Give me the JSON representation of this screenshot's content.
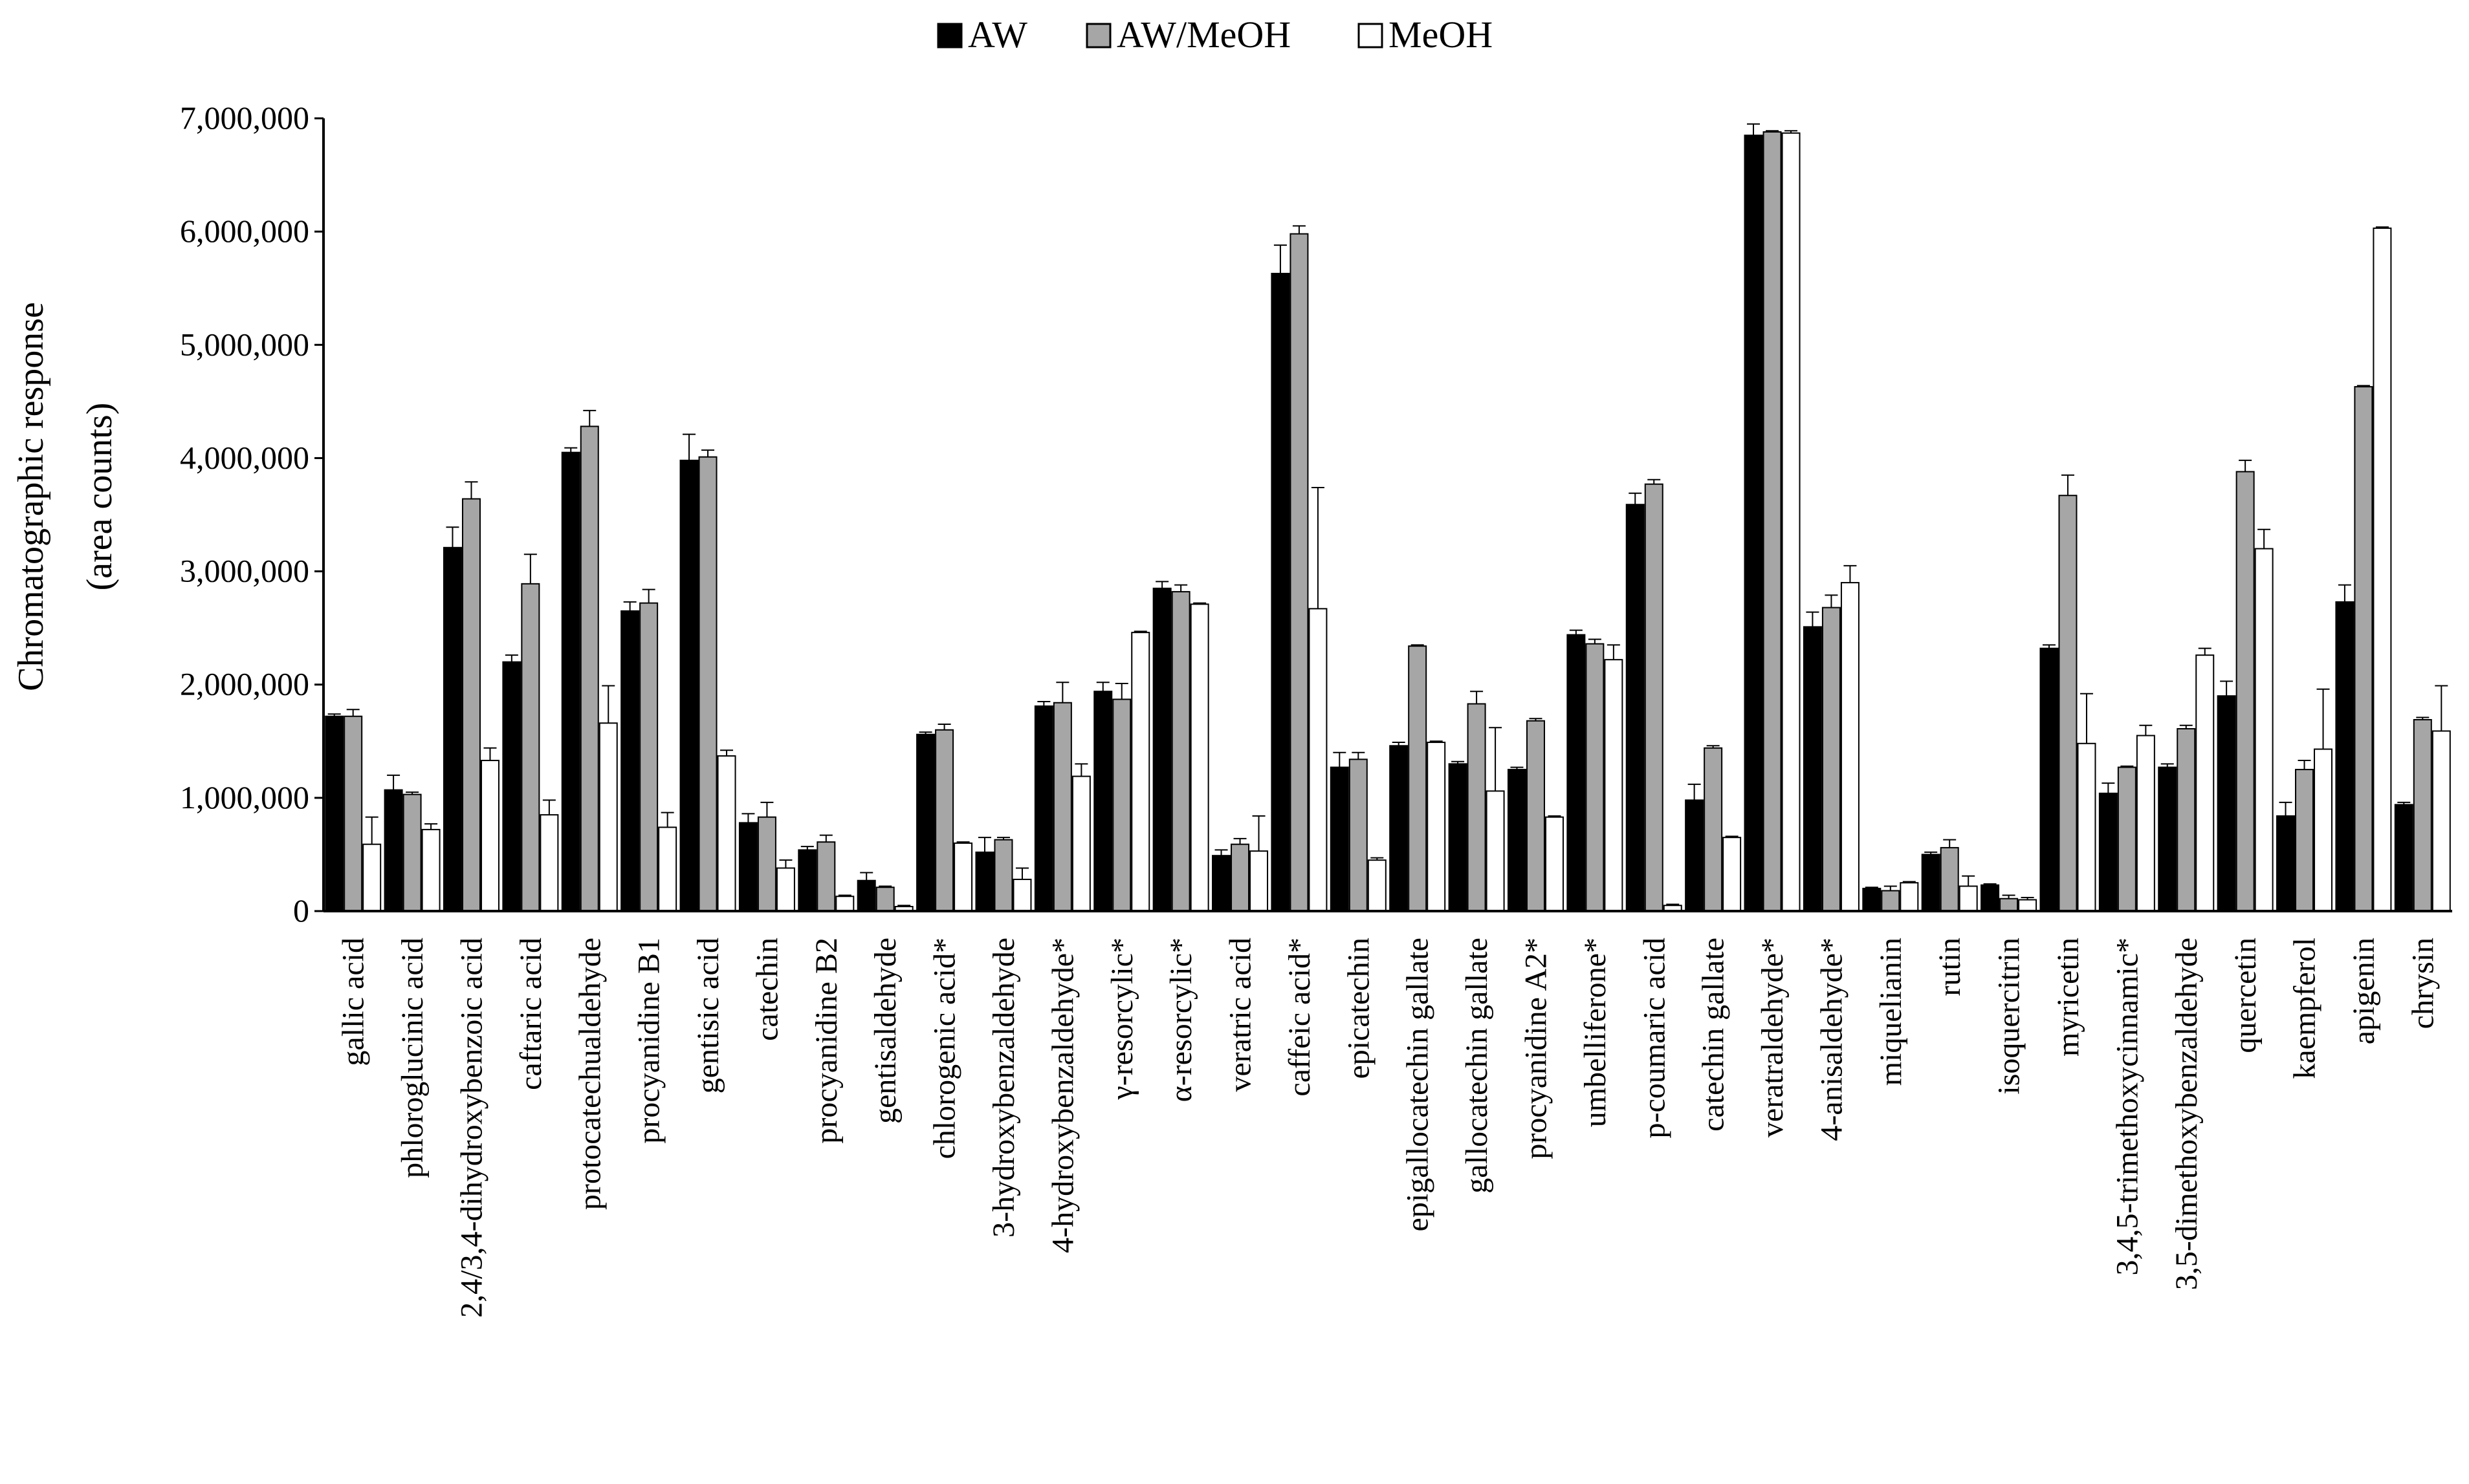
{
  "chart_data": {
    "type": "bar",
    "title": "",
    "xlabel": "",
    "ylabel": [
      "Chromatographic response",
      "(area counts)"
    ],
    "ylim": [
      0,
      7000000
    ],
    "yticks": [
      0,
      1000000,
      2000000,
      3000000,
      4000000,
      5000000,
      6000000,
      7000000
    ],
    "ytick_labels": [
      "0",
      "1,000,000",
      "2,000,000",
      "3,000,000",
      "4,000,000",
      "5,000,000",
      "6,000,000",
      "7,000,000"
    ],
    "grid": false,
    "legend_position": "top-center",
    "categories": [
      "gallic acid",
      "phloroglucinic acid",
      "2,4/3,4-dihydroxybenzoic acid",
      "caftaric acid",
      "protocatechualdehyde",
      "procyanidine B1",
      "gentisic acid",
      "catechin",
      "procyanidine B2",
      "gentisaldehyde",
      "chlorogenic acid*",
      "3-hydroxybenzaldehyde",
      "4-hydroxybenzaldehyde*",
      "γ-resorcylic*",
      "α-resorcylic*",
      "veratric acid",
      "caffeic acid*",
      "epicatechin",
      "epigallocatechin gallate",
      "gallocatechin gallate",
      "procyanidine A2*",
      "umbelliferone*",
      "p-coumaric acid",
      "catechin gallate",
      "veratraldehyde*",
      "4-anisaldehyde*",
      "miquelianin",
      "rutin",
      "isoquercitrin",
      "myricetin",
      "3,4,5-trimethoxycinnamic*",
      "3,5-dimethoxybenzaldehyde",
      "quercetin",
      "kaempferol",
      "apigenin",
      "chrysin"
    ],
    "series": [
      {
        "name": "AW",
        "color": "#000000",
        "values": [
          1720000,
          1070000,
          3210000,
          2200000,
          4050000,
          2650000,
          3980000,
          780000,
          540000,
          270000,
          1560000,
          520000,
          1810000,
          1940000,
          2850000,
          490000,
          5630000,
          1270000,
          1460000,
          1300000,
          1250000,
          2440000,
          3590000,
          980000,
          6850000,
          2510000,
          200000,
          500000,
          230000,
          2320000,
          1040000,
          1270000,
          1900000,
          840000,
          2730000,
          940000
        ],
        "errors": [
          20000,
          130000,
          180000,
          60000,
          40000,
          80000,
          230000,
          80000,
          30000,
          70000,
          20000,
          130000,
          40000,
          80000,
          60000,
          50000,
          250000,
          130000,
          30000,
          20000,
          20000,
          40000,
          100000,
          140000,
          100000,
          130000,
          10000,
          20000,
          10000,
          30000,
          90000,
          30000,
          130000,
          120000,
          150000,
          20000
        ]
      },
      {
        "name": "AW/MeOH",
        "color": "#a6a6a6",
        "values": [
          1720000,
          1030000,
          3640000,
          2890000,
          4280000,
          2720000,
          4010000,
          830000,
          610000,
          210000,
          1600000,
          630000,
          1840000,
          1870000,
          2820000,
          590000,
          5980000,
          1340000,
          2340000,
          1830000,
          1680000,
          2360000,
          3770000,
          1440000,
          6880000,
          2680000,
          180000,
          560000,
          110000,
          3670000,
          1270000,
          1610000,
          3880000,
          1250000,
          4630000,
          1690000
        ],
        "errors": [
          60000,
          20000,
          150000,
          260000,
          140000,
          120000,
          60000,
          130000,
          60000,
          10000,
          50000,
          20000,
          180000,
          140000,
          60000,
          50000,
          70000,
          60000,
          10000,
          110000,
          20000,
          40000,
          40000,
          20000,
          10000,
          110000,
          40000,
          70000,
          30000,
          180000,
          10000,
          30000,
          100000,
          80000,
          10000,
          20000
        ]
      },
      {
        "name": "MeOH",
        "color": "#ffffff",
        "values": [
          590000,
          720000,
          1330000,
          850000,
          1660000,
          740000,
          1370000,
          380000,
          130000,
          40000,
          600000,
          280000,
          1190000,
          2460000,
          2710000,
          530000,
          2670000,
          450000,
          1490000,
          1060000,
          830000,
          2220000,
          50000,
          650000,
          6870000,
          2900000,
          250000,
          220000,
          100000,
          1480000,
          1550000,
          2260000,
          3200000,
          1430000,
          6030000,
          1590000
        ],
        "errors": [
          240000,
          50000,
          110000,
          130000,
          330000,
          130000,
          50000,
          70000,
          10000,
          10000,
          10000,
          100000,
          110000,
          10000,
          10000,
          310000,
          1070000,
          20000,
          10000,
          560000,
          10000,
          130000,
          10000,
          10000,
          20000,
          150000,
          10000,
          90000,
          20000,
          440000,
          90000,
          60000,
          170000,
          530000,
          10000,
          400000
        ]
      }
    ]
  }
}
